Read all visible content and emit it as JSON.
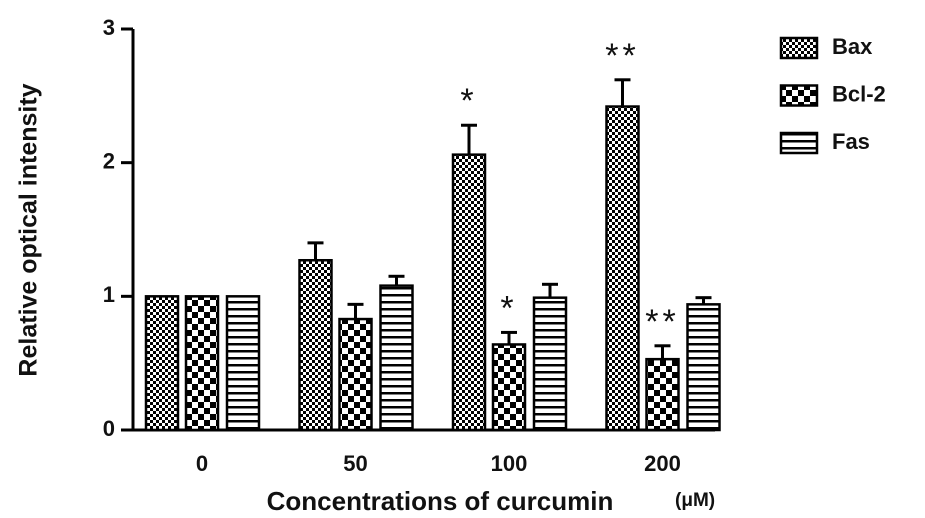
{
  "chart_data": {
    "type": "bar",
    "ylabel": "Relative optical intensity",
    "xlabel": "Concentrations of curcumin",
    "xunit": "(μM)",
    "categories": [
      "0",
      "50",
      "100",
      "200"
    ],
    "series": [
      {
        "name": "Bax",
        "color": "#000000",
        "pattern": "fine-checker",
        "values": [
          1.0,
          1.27,
          2.06,
          2.42
        ],
        "errors": [
          0,
          0.13,
          0.22,
          0.2
        ],
        "significance": [
          null,
          null,
          "*",
          "**"
        ]
      },
      {
        "name": "Bcl-2",
        "color": "#000000",
        "pattern": "checker",
        "values": [
          1.0,
          0.83,
          0.64,
          0.53
        ],
        "errors": [
          0,
          0.11,
          0.09,
          0.1
        ],
        "significance": [
          null,
          null,
          "*",
          "**"
        ]
      },
      {
        "name": "Fas",
        "color": "#000000",
        "pattern": "horizontal-lines",
        "values": [
          1.0,
          1.08,
          0.99,
          0.94
        ],
        "errors": [
          0,
          0.07,
          0.1,
          0.05
        ],
        "significance": [
          null,
          null,
          null,
          null
        ]
      }
    ],
    "ylim": [
      0,
      3
    ],
    "yticks": [
      0,
      1,
      2,
      3
    ],
    "legend": "upper-right",
    "grid": false
  }
}
